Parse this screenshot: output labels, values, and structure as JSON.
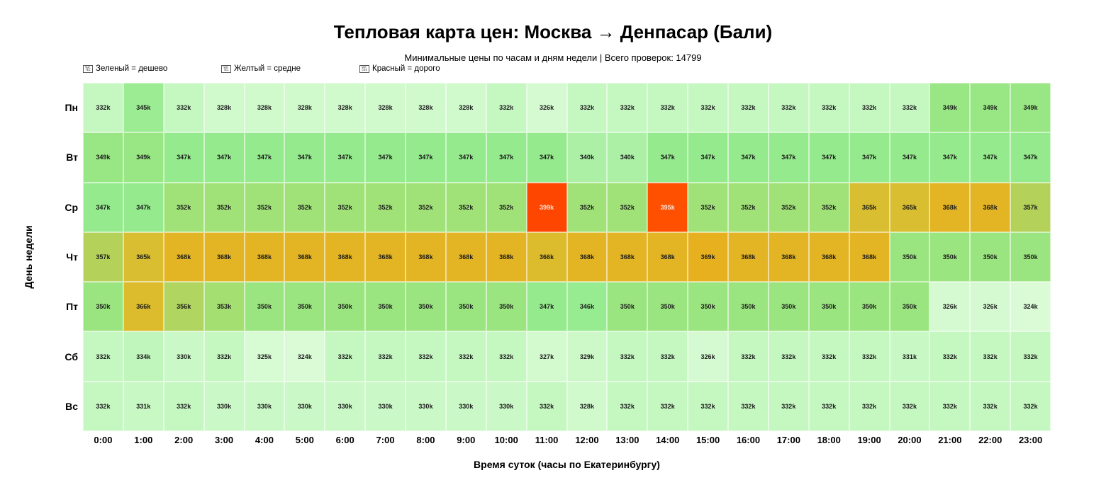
{
  "chart_data": {
    "type": "heatmap",
    "title": "Тепловая карта цен: Москва → Денпасар (Бали)",
    "subtitle": "Минимальные цены по часам и дням недели | Всего проверок: 14799",
    "xlabel": "Время суток (часы по Екатеринбургу)",
    "ylabel": "День недели",
    "legend": [
      {
        "icon": "missing-glyph",
        "label": "Зеленый = дешево"
      },
      {
        "icon": "missing-glyph",
        "label": "Желтый = средне"
      },
      {
        "icon": "missing-glyph",
        "label": "Красный = дорого"
      }
    ],
    "x": [
      "0:00",
      "1:00",
      "2:00",
      "3:00",
      "4:00",
      "5:00",
      "6:00",
      "7:00",
      "8:00",
      "9:00",
      "10:00",
      "11:00",
      "12:00",
      "13:00",
      "14:00",
      "15:00",
      "16:00",
      "17:00",
      "18:00",
      "19:00",
      "20:00",
      "21:00",
      "22:00",
      "23:00"
    ],
    "y": [
      "Пн",
      "Вт",
      "Ср",
      "Чт",
      "Пт",
      "Сб",
      "Вс"
    ],
    "unit": "k",
    "values": [
      [
        332,
        345,
        332,
        328,
        328,
        328,
        328,
        328,
        328,
        328,
        332,
        326,
        332,
        332,
        332,
        332,
        332,
        332,
        332,
        332,
        332,
        349,
        349,
        349
      ],
      [
        349,
        349,
        347,
        347,
        347,
        347,
        347,
        347,
        347,
        347,
        347,
        347,
        340,
        340,
        347,
        347,
        347,
        347,
        347,
        347,
        347,
        347,
        347,
        347
      ],
      [
        347,
        347,
        352,
        352,
        352,
        352,
        352,
        352,
        352,
        352,
        352,
        399,
        352,
        352,
        395,
        352,
        352,
        352,
        352,
        365,
        365,
        368,
        368,
        357
      ],
      [
        357,
        365,
        368,
        368,
        368,
        368,
        368,
        368,
        368,
        368,
        368,
        366,
        368,
        368,
        368,
        369,
        368,
        368,
        368,
        368,
        350,
        350,
        350,
        350
      ],
      [
        350,
        366,
        356,
        353,
        350,
        350,
        350,
        350,
        350,
        350,
        350,
        347,
        346,
        350,
        350,
        350,
        350,
        350,
        350,
        350,
        350,
        326,
        326,
        324
      ],
      [
        332,
        334,
        330,
        332,
        325,
        324,
        332,
        332,
        332,
        332,
        332,
        327,
        329,
        332,
        332,
        326,
        332,
        332,
        332,
        332,
        331,
        332,
        332,
        332
      ],
      [
        332,
        331,
        332,
        330,
        330,
        330,
        330,
        330,
        330,
        330,
        330,
        332,
        328,
        332,
        332,
        332,
        332,
        332,
        332,
        332,
        332,
        332,
        332,
        332
      ]
    ],
    "colorscale": {
      "low": "#d9fbd9",
      "mid": "#e6b020",
      "high": "#ff4500"
    },
    "grid": false
  }
}
